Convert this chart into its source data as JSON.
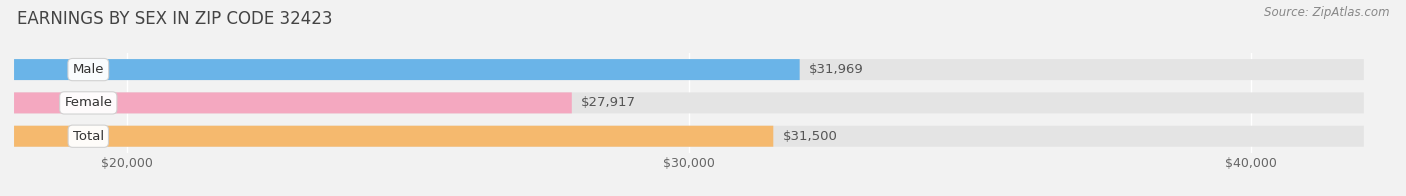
{
  "title": "EARNINGS BY SEX IN ZIP CODE 32423",
  "source": "Source: ZipAtlas.com",
  "categories": [
    "Male",
    "Female",
    "Total"
  ],
  "values": [
    31969,
    27917,
    31500
  ],
  "labels": [
    "$31,969",
    "$27,917",
    "$31,500"
  ],
  "bar_colors": [
    "#6ab4e8",
    "#f4a8c0",
    "#f5b96e"
  ],
  "background_color": "#f2f2f2",
  "bar_bg_color": "#e4e4e4",
  "xlim": [
    18000,
    42000
  ],
  "xstart": 18000,
  "xticks": [
    20000,
    30000,
    40000
  ],
  "xtick_labels": [
    "$20,000",
    "$30,000",
    "$40,000"
  ],
  "title_fontsize": 12,
  "label_fontsize": 9.5,
  "tick_fontsize": 9,
  "source_fontsize": 8.5,
  "bar_height": 0.62,
  "bar_gap": 0.18
}
